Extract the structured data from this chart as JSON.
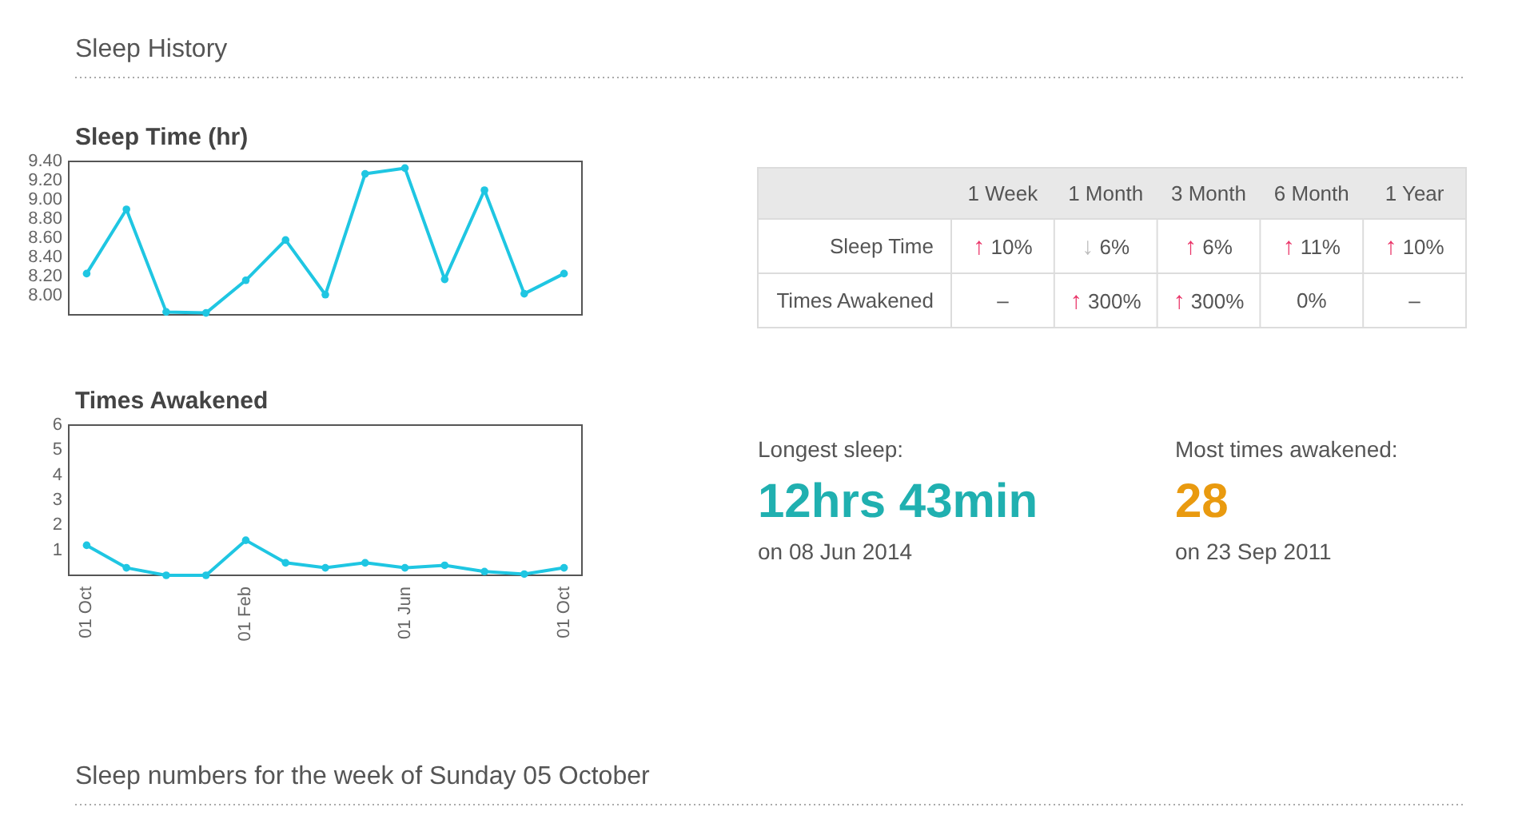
{
  "chart_data": [
    {
      "type": "other",
      "title": "Sleep History"
    },
    {
      "type": "line",
      "title": "Sleep Time (hr)",
      "categories": [
        null,
        null,
        null,
        null,
        null,
        null,
        null,
        null,
        null,
        null,
        null,
        null,
        null
      ],
      "series": [
        {
          "color": "#1fc6e2",
          "values": [
            8.23,
            8.9,
            7.83,
            7.82,
            8.16,
            8.58,
            8.01,
            9.27,
            9.33,
            8.17,
            9.1,
            8.02,
            8.23
          ]
        }
      ],
      "ylim": [
        7.8,
        9.4
      ],
      "yticks": [
        {
          "value": 8,
          "label": "8.00"
        },
        {
          "value": 8.2,
          "label": "8.20"
        },
        {
          "value": 8.4,
          "label": "8.40"
        },
        {
          "value": 8.6,
          "label": "8.60"
        },
        {
          "value": 8.8,
          "label": "8.80"
        },
        {
          "value": 9,
          "label": "9.00"
        },
        {
          "value": 9.2,
          "label": "9.20"
        },
        {
          "value": 9.4,
          "label": "9.40"
        }
      ],
      "marker": "circle"
    },
    {
      "type": "other",
      "categories": [
        "1 Week",
        "1 Month",
        "3 Month",
        "6 Month",
        "1 Year"
      ],
      "y_categories": [
        "Sleep Time",
        "Times Awakened"
      ],
      "cell_labels": [
        [
          "↑ 10%",
          "↓ 6%",
          "↑ 6%",
          "↑ 11%",
          "↑ 10%"
        ],
        [
          "–",
          "↑ 300%",
          "↑ 300%",
          "0%",
          "–"
        ]
      ],
      "colors": [
        [
          "#ea3468",
          "#bdbdbd",
          "#ea3468",
          "#ea3468",
          "#ea3468"
        ],
        [
          null,
          "#ea3468",
          "#ea3468",
          null,
          null
        ]
      ]
    },
    {
      "type": "line",
      "title": "Times Awakened",
      "categories": [
        "01 Oct",
        null,
        null,
        null,
        "01 Feb",
        null,
        null,
        null,
        "01 Jun",
        null,
        null,
        null,
        "01 Oct"
      ],
      "series": [
        {
          "color": "#1fc6e2",
          "values": [
            1.2,
            0.3,
            0,
            0,
            1.4,
            0.5,
            0.3,
            0.5,
            0.3,
            0.4,
            0.15,
            0.05,
            0.3
          ]
        }
      ],
      "ylim": [
        0,
        6
      ],
      "yticks": [
        1,
        2,
        3,
        4,
        5,
        6
      ],
      "marker": "circle"
    },
    {
      "type": "other",
      "annotations": [
        "Longest sleep:",
        "12hrs 43min",
        "on 08 Jun 2014",
        "Most times awakened:",
        "28",
        "on 23 Sep 2011"
      ],
      "colors": [
        "#20b0b0",
        "#e99a0f"
      ]
    },
    {
      "type": "other",
      "title": "Sleep numbers for the week of Sunday 05 October"
    }
  ]
}
